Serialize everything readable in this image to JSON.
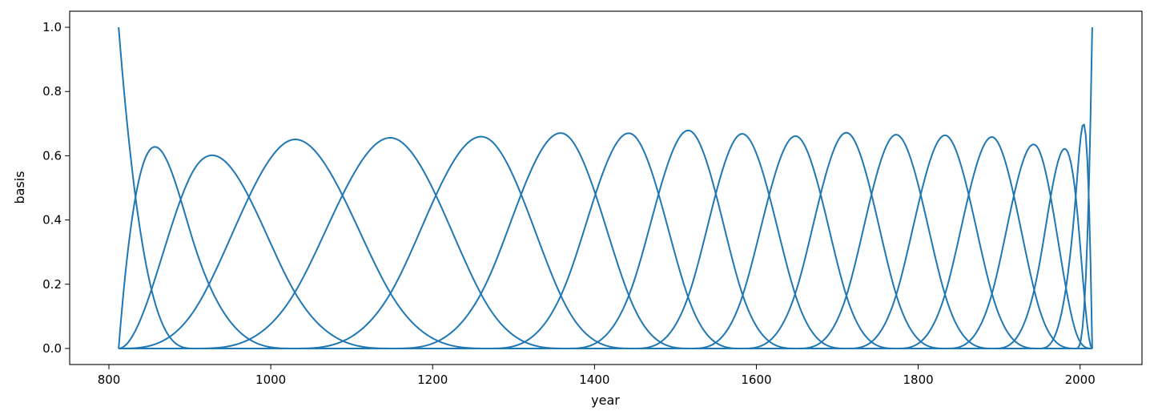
{
  "chart_data": {
    "type": "line",
    "title": "",
    "xlabel": "year",
    "ylabel": "basis",
    "xlim": [
      751.5,
      2076.5
    ],
    "ylim": [
      -0.05,
      1.05
    ],
    "grid": false,
    "legend": "none",
    "line_color": "#1f77b4",
    "xticks": [
      800,
      1000,
      1200,
      1400,
      1600,
      1800,
      2000
    ],
    "xtick_labels": [
      "800",
      "1000",
      "1200",
      "1400",
      "1600",
      "1800",
      "2000"
    ],
    "yticks": [
      0.0,
      0.2,
      0.4,
      0.6,
      0.8,
      1.0
    ],
    "ytick_labels": [
      "0.0",
      "0.2",
      "0.4",
      "0.6",
      "0.8",
      "1.0"
    ],
    "spline": {
      "degree": 3,
      "knots": [
        812,
        812,
        812,
        812,
        906,
        1028,
        1151,
        1269,
        1366,
        1448,
        1519,
        1582,
        1650,
        1712,
        1773,
        1834,
        1893,
        1949,
        1995,
        2015,
        2015,
        2015,
        2015
      ],
      "num_basis_functions": 19
    }
  }
}
